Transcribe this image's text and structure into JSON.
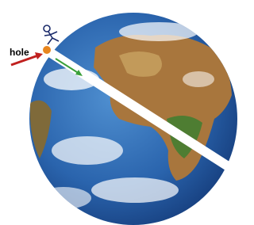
{
  "annotation": {
    "label": "hole"
  }
}
